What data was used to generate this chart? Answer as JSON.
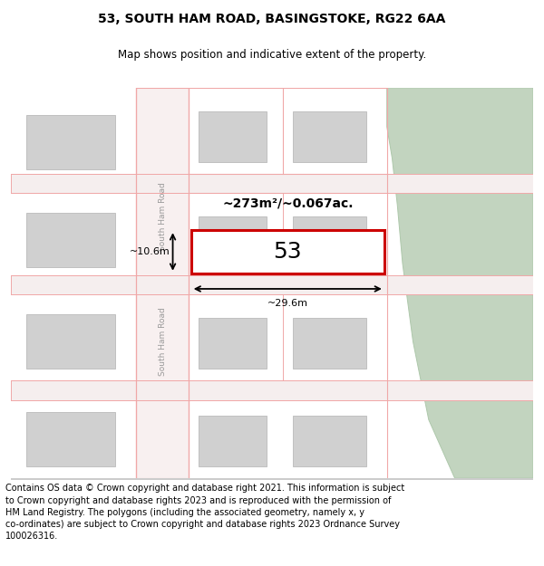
{
  "title": "53, SOUTH HAM ROAD, BASINGSTOKE, RG22 6AA",
  "subtitle": "Map shows position and indicative extent of the property.",
  "footer": "Contains OS data © Crown copyright and database right 2021. This information is subject\nto Crown copyright and database rights 2023 and is reproduced with the permission of\nHM Land Registry. The polygons (including the associated geometry, namely x, y\nco-ordinates) are subject to Crown copyright and database rights 2023 Ordnance Survey\n100026316.",
  "bg_color": "#ffffff",
  "map_bg": "#f5eeee",
  "area_text": "~273m²/~0.067ac.",
  "number_text": "53",
  "dim_width": "~29.6m",
  "dim_height": "~10.6m",
  "road_label_upper": "South Ham Road",
  "road_label_lower": "South Ham Road",
  "title_fontsize": 10,
  "subtitle_fontsize": 8.5,
  "footer_fontsize": 7.0,
  "building_color": "#d0d0d0",
  "building_edge": "#c0c0c0",
  "road_line_color": "#f0a8a8",
  "green_color": "#c2d4bf",
  "green_edge": "#aec8ab",
  "prop_edge": "#cc0000",
  "prop_fill": "#ffffff",
  "dim_color": "#000000",
  "road_text_color": "#999999"
}
